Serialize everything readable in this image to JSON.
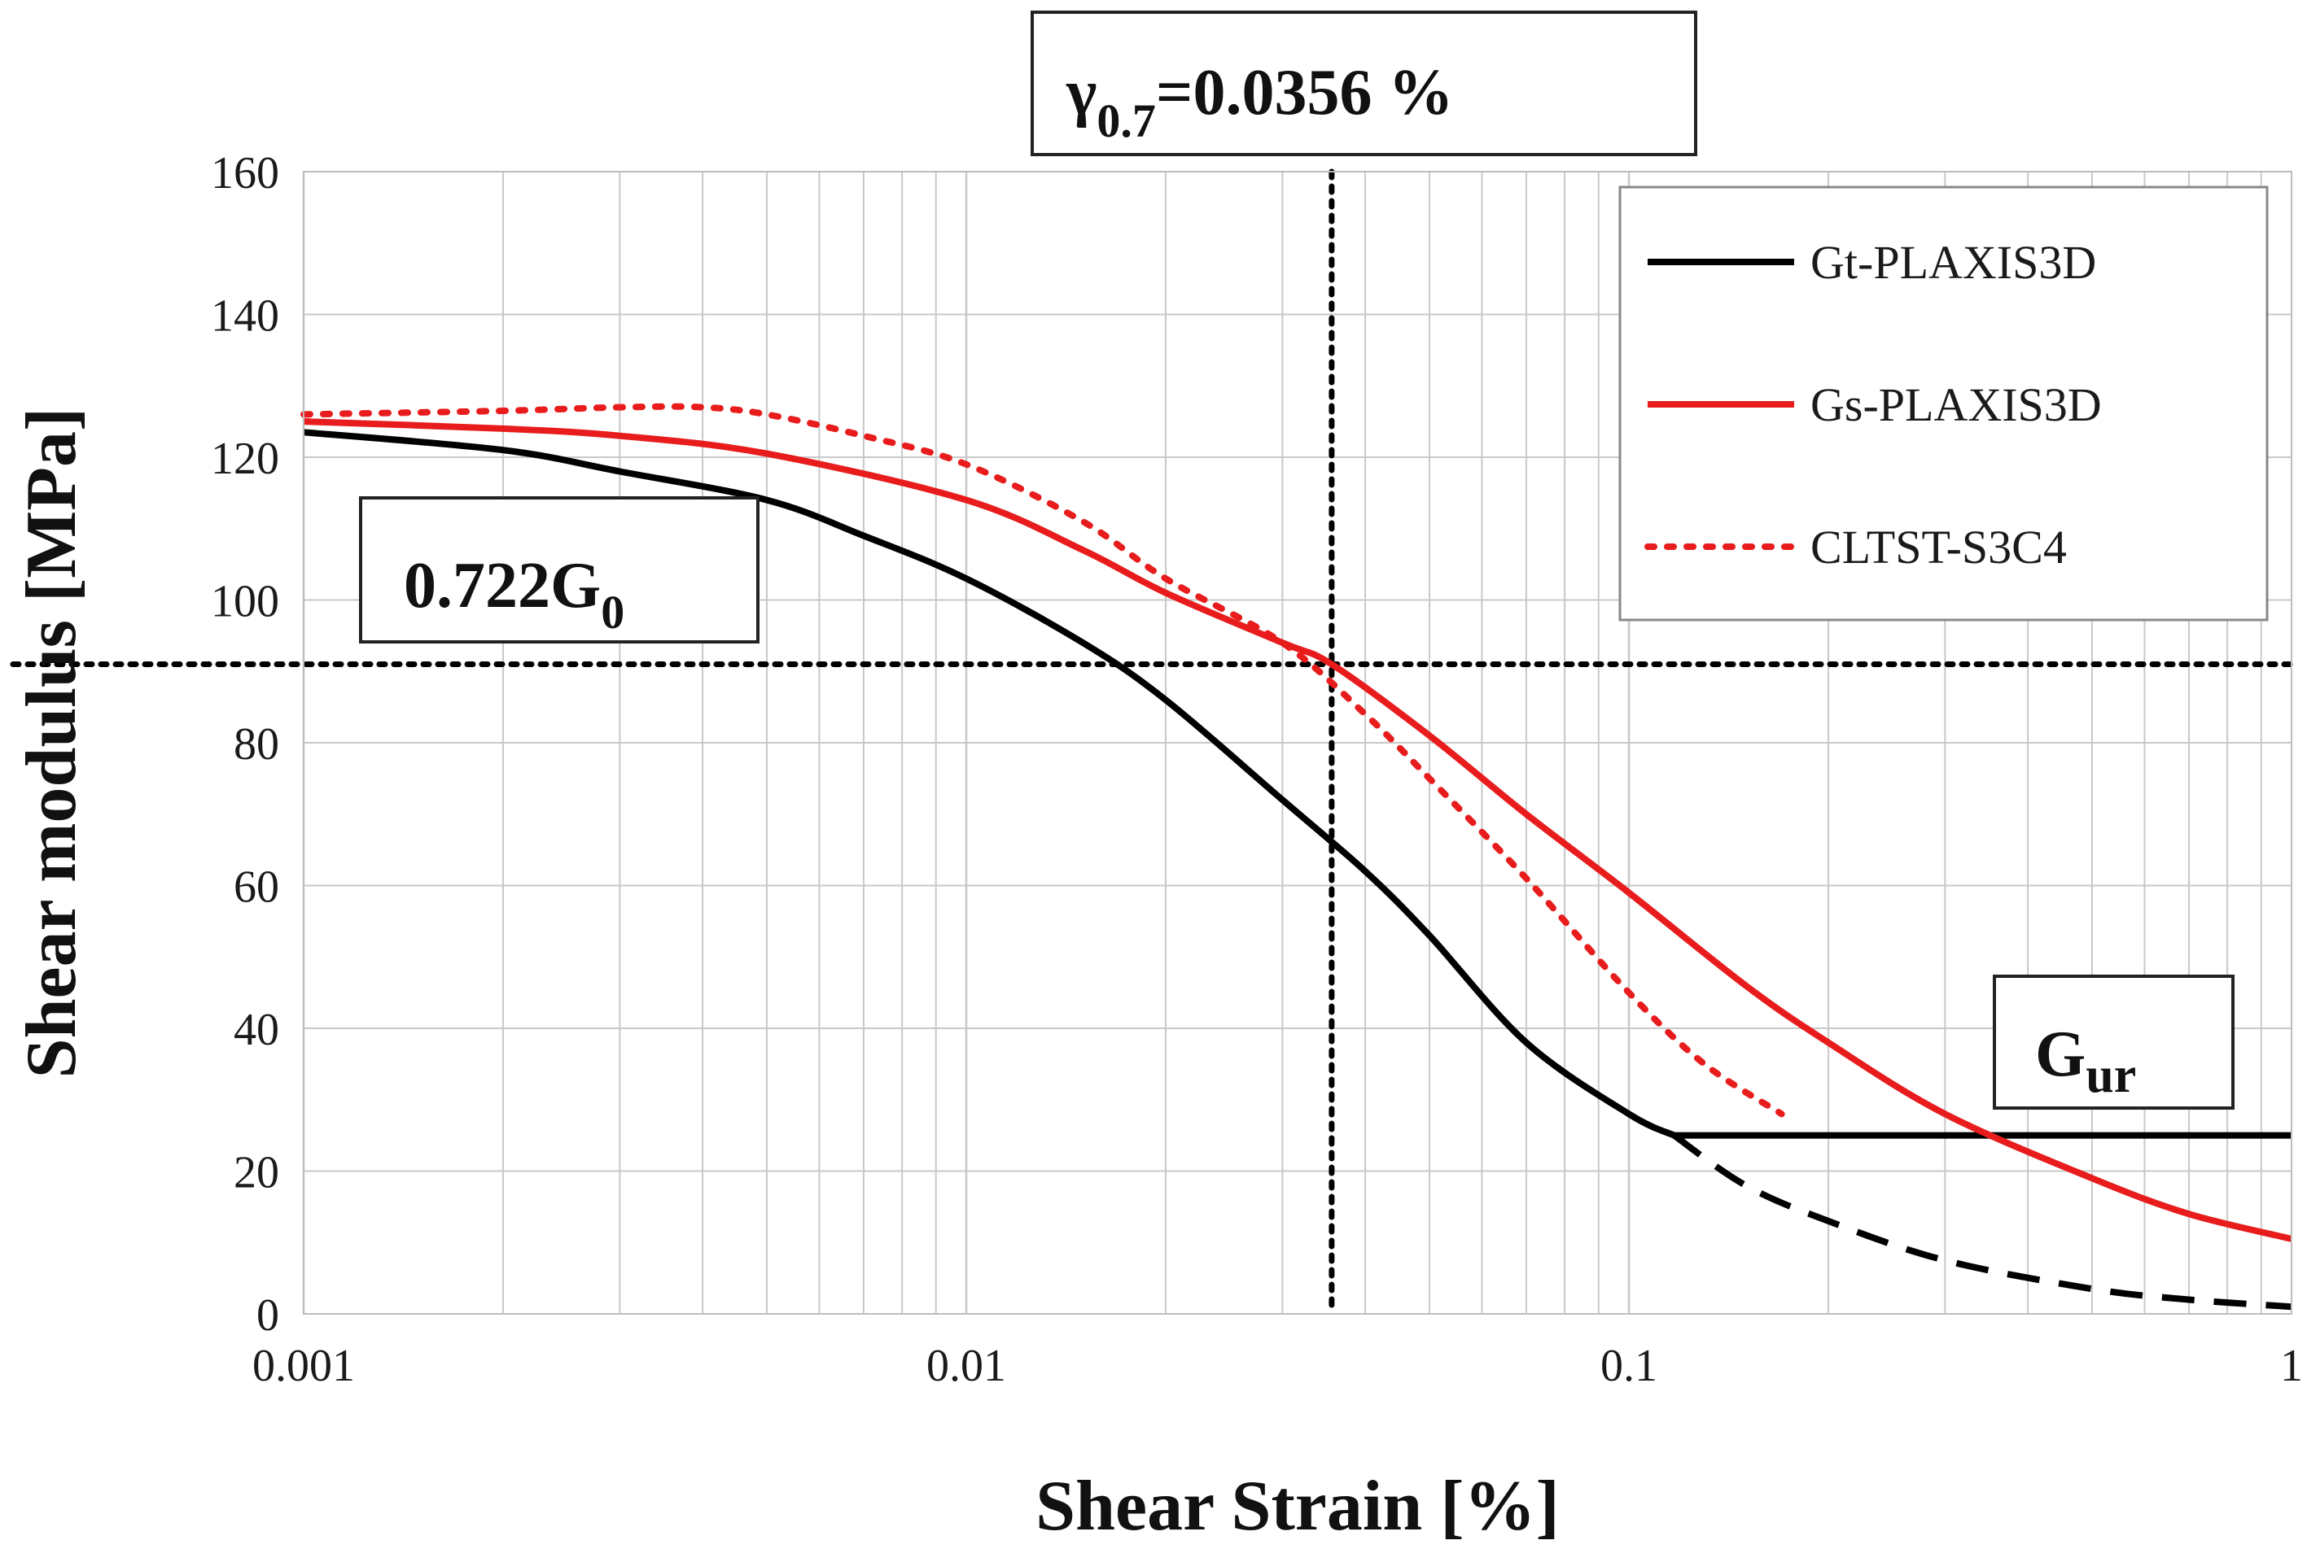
{
  "chart_data": {
    "type": "line",
    "title": "",
    "xlabel": "Shear Strain [%]",
    "ylabel": "Shear modulus [MPa]",
    "xscale": "log",
    "xlim": [
      0.001,
      1
    ],
    "ylim": [
      0,
      160
    ],
    "grid": true,
    "x_ticks": [
      0.001,
      0.01,
      0.1,
      1
    ],
    "x_tick_labels": [
      "0.001",
      "0.01",
      "0.1",
      "1"
    ],
    "y_ticks": [
      0,
      20,
      40,
      60,
      80,
      100,
      120,
      140,
      160
    ],
    "y_tick_labels": [
      "0",
      "20",
      "40",
      "60",
      "80",
      "100",
      "120",
      "140",
      "160"
    ],
    "legend_position": "top-right",
    "series": [
      {
        "name": "Gt-PLAXIS3D",
        "color": "#000000",
        "style": "solid",
        "x": [
          0.001,
          0.002,
          0.003,
          0.005,
          0.007,
          0.01,
          0.015,
          0.02,
          0.03,
          0.04,
          0.05,
          0.07,
          0.1,
          0.117
        ],
        "y": [
          123.5,
          121,
          118,
          114,
          109,
          103,
          94,
          86,
          72,
          62,
          53,
          38,
          28,
          25
        ]
      },
      {
        "name": "Gt-PLAXIS3D (below Gur)",
        "color": "#000000",
        "style": "dashed",
        "legend": false,
        "x": [
          0.117,
          0.15,
          0.2,
          0.3,
          0.5,
          0.7,
          1.0
        ],
        "y": [
          25,
          18,
          13,
          7.5,
          3.5,
          2,
          1
        ]
      },
      {
        "name": "Gur",
        "color": "#000000",
        "style": "solid",
        "legend": false,
        "x": [
          0.117,
          1.0
        ],
        "y": [
          25,
          25
        ]
      },
      {
        "name": "Gs-PLAXIS3D",
        "color": "#e81c1c",
        "style": "solid",
        "x": [
          0.001,
          0.002,
          0.003,
          0.005,
          0.01,
          0.015,
          0.02,
          0.03,
          0.0356,
          0.05,
          0.07,
          0.1,
          0.15,
          0.2,
          0.3,
          0.5,
          0.7,
          1.0
        ],
        "y": [
          125,
          124,
          123,
          120.5,
          114,
          107,
          101,
          94,
          91,
          81,
          70,
          59,
          46,
          38,
          28,
          19,
          14,
          10.5
        ]
      },
      {
        "name": "CLTST-S3C4",
        "color": "#e81c1c",
        "style": "dotted",
        "x": [
          0.001,
          0.002,
          0.003,
          0.004,
          0.005,
          0.007,
          0.01,
          0.015,
          0.02,
          0.03,
          0.04,
          0.05,
          0.07,
          0.1,
          0.13,
          0.17
        ],
        "y": [
          126,
          126.5,
          127,
          127,
          126,
          123,
          119,
          111,
          103,
          94,
          84,
          75,
          61,
          45,
          35,
          28
        ]
      }
    ],
    "reference_lines": [
      {
        "axis": "x",
        "value": 0.0356,
        "style": "dotted",
        "color": "#000000"
      },
      {
        "axis": "y",
        "value": 91,
        "style": "dotted",
        "color": "#000000"
      }
    ],
    "annotations": [
      {
        "id": "gamma",
        "base": "γ",
        "sub": "0.7",
        "rest": "=0.0356 %"
      },
      {
        "id": "g0",
        "base": "0.722G",
        "sub": "0",
        "rest": ""
      },
      {
        "id": "gur",
        "base": "G",
        "sub": "ur",
        "rest": ""
      }
    ]
  }
}
